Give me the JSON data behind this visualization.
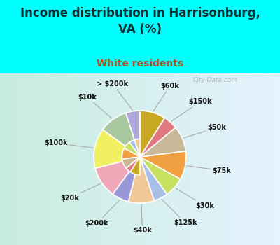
{
  "title": "Income distribution in Harrisonburg,\nVA (%)",
  "subtitle": "White residents",
  "title_color": "#003333",
  "subtitle_color": "#b05020",
  "background_top": "#00ffff",
  "labels": [
    "> $200k",
    "$10k",
    "$100k",
    "$20k",
    "$200k",
    "$40k",
    "$125k",
    "$30k",
    "$75k",
    "$50k",
    "$150k",
    "$60k"
  ],
  "sizes": [
    5,
    10,
    14,
    11,
    6,
    9,
    5,
    7,
    10,
    9,
    5,
    9
  ],
  "colors": [
    "#b0a8d8",
    "#a8c8a0",
    "#f0f060",
    "#f0a8b8",
    "#9898d8",
    "#f0c898",
    "#a8c0e8",
    "#c8e060",
    "#f0a040",
    "#c8b898",
    "#e07880",
    "#c8a820"
  ]
}
